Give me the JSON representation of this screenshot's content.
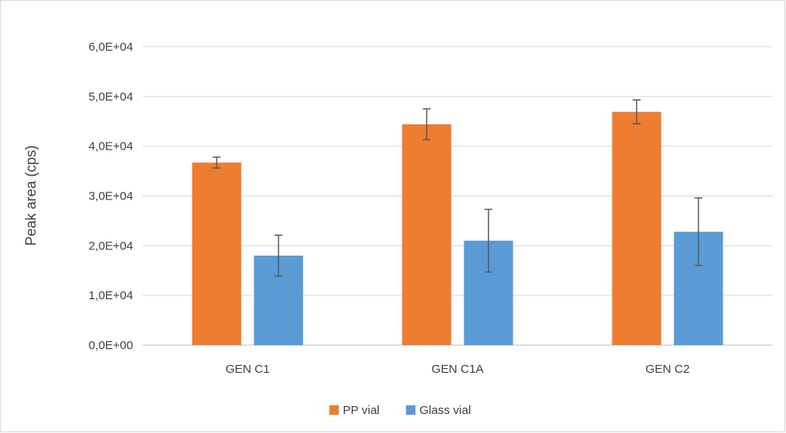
{
  "chart_data": {
    "type": "bar",
    "title": "",
    "xlabel": "",
    "ylabel": "Peak area (cps)",
    "ylim": [
      0,
      60000
    ],
    "yticks": [
      0,
      10000,
      20000,
      30000,
      40000,
      50000,
      60000
    ],
    "ytick_labels": [
      "0,0E+00",
      "1,0E+04",
      "2,0E+04",
      "3,0E+04",
      "4,0E+04",
      "5,0E+04",
      "6,0E+04"
    ],
    "categories": [
      "GEN C1",
      "GEN C1A",
      "GEN C2"
    ],
    "grid": true,
    "legend_position": "bottom",
    "series": [
      {
        "name": "PP vial",
        "color": "#ED7D31",
        "values": [
          36700,
          44400,
          46900
        ],
        "error": [
          1100,
          3100,
          2400
        ]
      },
      {
        "name": "Glass vial",
        "color": "#5B9BD5",
        "values": [
          18000,
          21000,
          22800
        ],
        "error": [
          4100,
          6300,
          6800
        ]
      }
    ]
  }
}
